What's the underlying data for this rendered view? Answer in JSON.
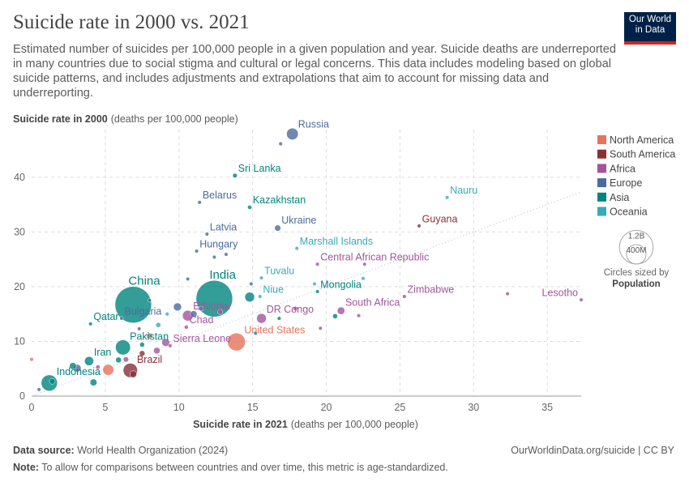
{
  "logo": "Our World in Data",
  "chart_data": {
    "type": "scatter",
    "title": "Suicide rate in 2000 vs. 2021",
    "subtitle": "Estimated number of suicides per 100,000 people in a given population and year. Suicide deaths are underreported in many countries due to social stigma and cultural or legal concerns. This data includes modeling based on global suicide patterns, and includes adjustments and extrapolations that aim to account for missing data and underreporting.",
    "y_label": "Suicide rate in 2000",
    "y_label_unit": "(deaths per 100,000 people)",
    "x_label": "Suicide rate in 2021",
    "x_label_unit": "(deaths per 100,000 people)",
    "xlim": [
      0,
      37.3
    ],
    "ylim": [
      0,
      48.7
    ],
    "xticks": [
      0,
      5,
      10,
      15,
      20,
      25,
      30,
      35
    ],
    "yticks": [
      0,
      10,
      20,
      30,
      40
    ],
    "grid": true,
    "size_legend_title": "Circles sized by",
    "size_legend_variable": "Population",
    "size_legend": [
      {
        "value": 1200,
        "label": "1.2B"
      },
      {
        "value": 400,
        "label": "400M"
      }
    ],
    "series": [
      {
        "name": "North America",
        "color": "#e6735c",
        "x": [
          13.9,
          8.0,
          5.2,
          0.0
        ],
        "values": [
          9.9,
          11.0,
          4.8,
          6.7
        ],
        "sizes": [
          335,
          38,
          127,
          0.3
        ],
        "labels": [
          "United States",
          null,
          null,
          null
        ]
      },
      {
        "name": "South America",
        "color": "#883039",
        "x": [
          26.3,
          6.7,
          7.5,
          6.9
        ],
        "values": [
          31.1,
          4.7,
          7.8,
          4.0
        ],
        "sizes": [
          0.8,
          215,
          33,
          50
        ],
        "labels": [
          "Guyana",
          "Brazil",
          null,
          null
        ]
      },
      {
        "name": "Africa",
        "color": "#a2559c",
        "x": [
          19.4,
          25.3,
          37.3,
          21.0,
          10.6,
          15.6,
          10.5,
          9.4,
          32.3,
          22.6,
          22.2,
          19.6,
          9.1,
          8.5,
          11.5,
          12.8,
          17.9,
          4.5,
          6.4
        ],
        "values": [
          24.1,
          18.2,
          17.6,
          15.6,
          14.7,
          14.2,
          12.6,
          9.2,
          18.7,
          24.1,
          14.7,
          12.4,
          9.8,
          8.3,
          16.0,
          15.4,
          16.0,
          5.3,
          6.7
        ],
        "sizes": [
          5,
          16,
          2.3,
          60,
          120,
          100,
          17,
          8,
          3.5,
          2.5,
          2.3,
          6,
          65,
          45,
          25,
          28,
          20,
          20,
          30
        ],
        "labels": [
          "Central African Republic",
          "Zimbabwe",
          "Lesotho",
          "South Africa",
          "Ethiopia",
          "DR Congo",
          "Chad",
          "Sierra Leone",
          null,
          null,
          null,
          null,
          null,
          null,
          null,
          null,
          null,
          null,
          null
        ]
      },
      {
        "name": "Europe",
        "color": "#4c6a9c",
        "x": [
          17.7,
          11.4,
          16.7,
          11.9,
          11.2,
          6.1,
          16.9,
          12.4,
          13.2,
          10.6,
          8.0,
          9.9,
          11.0,
          7.3,
          3.1,
          0.5,
          14.9
        ],
        "values": [
          47.9,
          35.4,
          30.7,
          29.6,
          26.5,
          14.2,
          46.1,
          25.4,
          25.9,
          21.4,
          17.5,
          16.3,
          15.0,
          12.3,
          5.1,
          1.2,
          20.5
        ],
        "sizes": [
          145,
          9.3,
          40,
          1.9,
          9.7,
          6.5,
          2.8,
          1.3,
          5.4,
          4,
          10,
          67,
          47,
          10,
          60,
          10,
          6
        ],
        "labels": [
          "Russia",
          "Belarus",
          "Ukraine",
          "Latvia",
          "Hungary",
          "Bulgaria",
          null,
          null,
          null,
          null,
          null,
          null,
          null,
          null,
          null,
          null,
          null
        ]
      },
      {
        "name": "Asia",
        "color": "#00847e",
        "x": [
          13.8,
          14.8,
          6.9,
          12.4,
          19.4,
          4.0,
          6.2,
          3.9,
          1.2,
          14.8,
          20.6,
          2.8,
          1.4,
          4.2,
          5.9,
          7.5,
          15.2,
          16.8
        ],
        "values": [
          40.3,
          34.5,
          16.7,
          17.8,
          19.1,
          13.2,
          8.9,
          6.4,
          2.4,
          18.1,
          14.6,
          5.5,
          2.7,
          2.5,
          6.6,
          9.4,
          11.5,
          14.2
        ],
        "sizes": [
          22,
          19,
          1410,
          1410,
          3.4,
          2.7,
          235,
          88,
          275,
          100,
          26,
          50,
          35,
          50,
          35,
          25,
          10,
          2
        ],
        "labels": [
          "Sri Lanka",
          "Kazakhstan",
          "China",
          "India",
          "Mongolia",
          "Qatar",
          "Pakistan",
          "Iran",
          "Indonesia",
          null,
          null,
          null,
          null,
          null,
          null,
          null,
          null,
          null
        ]
      },
      {
        "name": "Oceania",
        "color": "#38aaba",
        "x": [
          28.2,
          18.0,
          15.6,
          15.5,
          22.5,
          19.2,
          8.6,
          9.2
        ],
        "values": [
          36.3,
          27.0,
          21.6,
          18.2,
          21.5,
          20.5,
          13.0,
          15.0
        ],
        "sizes": [
          0.01,
          0.04,
          0.01,
          0.002,
          0.1,
          0.5,
          26,
          0.9
        ],
        "labels": [
          "Nauru",
          "Marshall Islands",
          "Tuvalu",
          "Niue",
          null,
          null,
          null,
          null
        ]
      }
    ]
  },
  "footer": {
    "source_label": "Data source:",
    "source": "World Health Organization (2024)",
    "url": "OurWorldinData.org/suicide | CC BY",
    "note_label": "Note:",
    "note": "To allow for comparisons between countries and over time, this metric is age-standardized."
  }
}
